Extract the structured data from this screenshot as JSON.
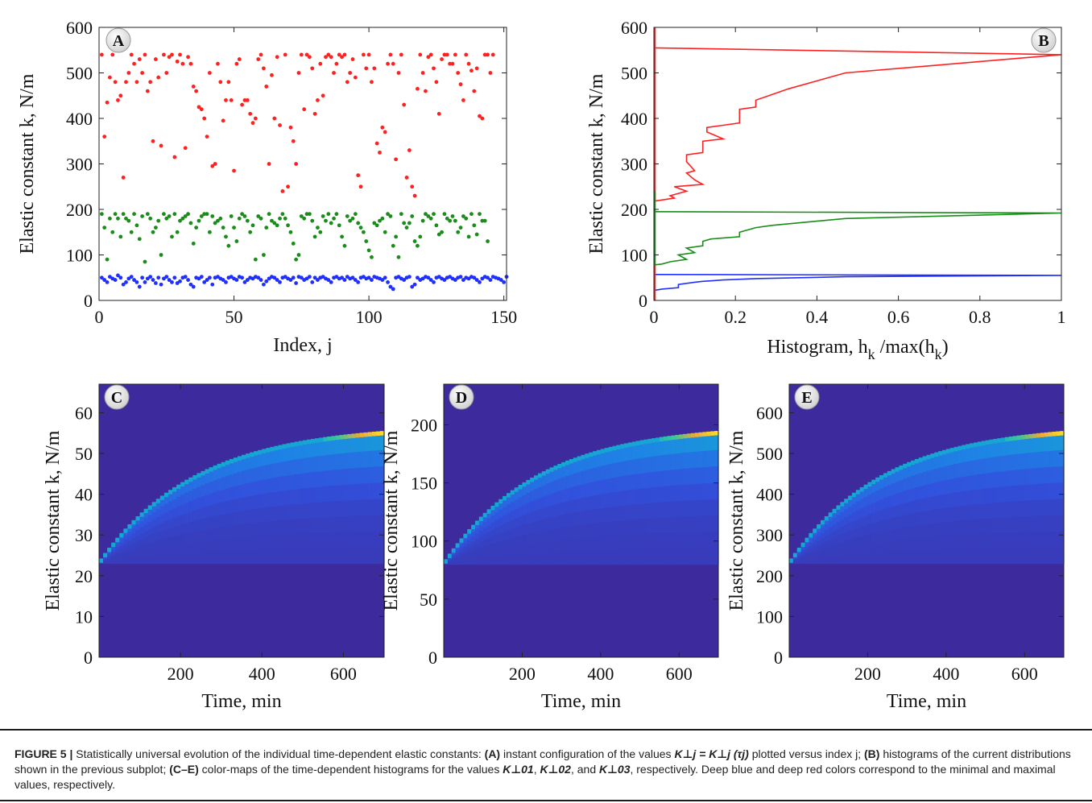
{
  "caption": {
    "fig": "FIGURE 5 |",
    "p1": " Statistically universal evolution of the individual time-dependent elastic constants: ",
    "a": "(A)",
    "p2": " instant configuration of the values ",
    "eq": "K⊥j = K⊥j (τj)",
    "p3": " plotted versus index j; ",
    "b": "(B)",
    "p4": " histograms of the current distributions shown in the previous subplot; ",
    "ce": "(C–E)",
    "p5": " color-maps of the time-dependent histograms for the values ",
    "k1": "K⊥01",
    "sep1": ", ",
    "k2": "K⊥02",
    "sep2": ", and ",
    "k3": "K⊥03",
    "p6": ", respectively. Deep blue and deep red colors correspond to the minimal and maximal values, respectively."
  },
  "colors": {
    "red": "#ff2020",
    "green": "#1a8c1a",
    "blue": "#1f2fff",
    "heat_bg": "#3d2a9c",
    "bright_cell": "#f5a623"
  },
  "chart_data": [
    {
      "panel": "A",
      "type": "scatter",
      "xlabel": "Index, j",
      "ylabel": "Elastic constant k, N/m",
      "xlim": [
        0,
        151
      ],
      "ylim": [
        0,
        600
      ],
      "xticks": [
        0,
        50,
        100,
        150
      ],
      "yticks": [
        0,
        100,
        200,
        300,
        400,
        500,
        600
      ],
      "series": [
        {
          "color": "red",
          "values": [
            540,
            360,
            435,
            490,
            540,
            480,
            440,
            450,
            270,
            480,
            500,
            540,
            520,
            480,
            530,
            500,
            540,
            460,
            480,
            350,
            530,
            490,
            340,
            540,
            500,
            535,
            540,
            315,
            525,
            540,
            520,
            335,
            535,
            520,
            470,
            460,
            425,
            420,
            400,
            360,
            500,
            295,
            300,
            520,
            480,
            395,
            440,
            480,
            440,
            285,
            520,
            530,
            430,
            440,
            440,
            410,
            390,
            400,
            530,
            540,
            510,
            470,
            300,
            495,
            400,
            535,
            385,
            240,
            540,
            250,
            380,
            350,
            300,
            500,
            540,
            420,
            540,
            535,
            510,
            410,
            440,
            520,
            450,
            535,
            540,
            535,
            500,
            520,
            540,
            535,
            540,
            480,
            500,
            530,
            490,
            275,
            250,
            540,
            510,
            540,
            480,
            510,
            345,
            325,
            380,
            370,
            520,
            540,
            520,
            310,
            500,
            540,
            430,
            270,
            330,
            250,
            230,
            465,
            540,
            500,
            460,
            535,
            540,
            510,
            480,
            410,
            530,
            540,
            540,
            520,
            520,
            540,
            500,
            475,
            440,
            540,
            520,
            505,
            460,
            510,
            405,
            400,
            540,
            540,
            500,
            540
          ]
        },
        {
          "color": "green",
          "values": [
            190,
            160,
            90,
            180,
            150,
            190,
            180,
            140,
            190,
            180,
            175,
            150,
            190,
            165,
            135,
            185,
            85,
            190,
            180,
            150,
            160,
            175,
            100,
            190,
            180,
            185,
            140,
            190,
            150,
            175,
            180,
            185,
            190,
            170,
            125,
            160,
            175,
            185,
            190,
            190,
            150,
            185,
            170,
            175,
            180,
            160,
            140,
            120,
            185,
            160,
            130,
            180,
            190,
            185,
            175,
            150,
            165,
            90,
            185,
            180,
            100,
            160,
            190,
            175,
            170,
            165,
            180,
            190,
            180,
            165,
            150,
            125,
            90,
            100,
            185,
            180,
            190,
            190,
            175,
            140,
            160,
            150,
            185,
            175,
            190,
            170,
            180,
            190,
            165,
            140,
            120,
            185,
            175,
            180,
            190,
            170,
            160,
            150,
            130,
            110,
            95,
            170,
            165,
            175,
            180,
            150,
            190,
            185,
            120,
            140,
            95,
            190,
            170,
            160,
            170,
            185,
            130,
            120,
            140,
            175,
            190,
            185,
            180,
            190,
            165,
            145,
            150,
            190,
            180,
            175,
            185,
            175,
            150,
            160,
            185,
            180,
            140,
            190,
            165,
            145,
            190,
            175,
            175,
            130
          ]
        },
        {
          "color": "blue",
          "values": [
            50,
            45,
            40,
            52,
            48,
            45,
            55,
            50,
            35,
            40,
            48,
            52,
            45,
            40,
            30,
            50,
            40,
            48,
            52,
            45,
            38,
            50,
            35,
            48,
            52,
            45,
            40,
            50,
            38,
            42,
            50,
            52,
            45,
            35,
            30,
            50,
            48,
            52,
            40,
            45,
            50,
            35,
            50,
            52,
            48,
            45,
            40,
            50,
            52,
            48,
            45,
            52,
            50,
            40,
            45,
            50,
            48,
            52,
            50,
            45,
            35,
            42,
            48,
            52,
            50,
            45,
            40,
            50,
            52,
            48,
            45,
            50,
            38,
            52,
            50,
            45,
            48,
            52,
            40,
            50,
            45,
            50,
            52,
            48,
            45,
            40,
            50,
            52,
            48,
            50,
            45,
            52,
            48,
            50,
            45,
            40,
            50,
            52,
            48,
            50,
            45,
            52,
            50,
            48,
            45,
            50,
            40,
            30,
            25,
            50,
            52,
            48,
            45,
            50,
            52,
            30,
            35,
            50,
            45,
            48,
            52,
            50,
            45,
            40,
            50,
            52,
            48,
            45,
            50,
            52,
            48,
            45,
            50,
            52,
            45,
            50,
            48,
            52,
            50,
            45,
            40,
            48,
            52,
            50,
            45,
            52,
            50,
            48,
            45,
            40,
            52
          ]
        }
      ],
      "label": "A"
    },
    {
      "panel": "B",
      "type": "line",
      "xlabel": "Histogram, h_k /max(h_k)",
      "ylabel": "Elastic constant k, N/m",
      "xlim": [
        0,
        1
      ],
      "ylim": [
        0,
        600
      ],
      "xticks": [
        "0",
        "0.2",
        "0.4",
        "0.6",
        "0.8",
        "1"
      ],
      "yticks": [
        0,
        100,
        200,
        300,
        400,
        500,
        600
      ],
      "series": [
        {
          "color": "red",
          "points": [
            [
              0,
              555
            ],
            [
              1,
              540
            ],
            [
              0.47,
              500
            ],
            [
              0.33,
              465
            ],
            [
              0.25,
              440
            ],
            [
              0.25,
              425
            ],
            [
              0.21,
              420
            ],
            [
              0.21,
              390
            ],
            [
              0.13,
              380
            ],
            [
              0.13,
              370
            ],
            [
              0.17,
              355
            ],
            [
              0.12,
              350
            ],
            [
              0.12,
              325
            ],
            [
              0.08,
              320
            ],
            [
              0.08,
              305
            ],
            [
              0.1,
              285
            ],
            [
              0.08,
              280
            ],
            [
              0.1,
              265
            ],
            [
              0.12,
              255
            ],
            [
              0.05,
              250
            ],
            [
              0.08,
              240
            ],
            [
              0.04,
              230
            ],
            [
              0.05,
              225
            ],
            [
              0,
              218
            ]
          ]
        },
        {
          "color": "green",
          "points": [
            [
              0,
              195
            ],
            [
              1,
              192
            ],
            [
              0.47,
              180
            ],
            [
              0.29,
              165
            ],
            [
              0.25,
              160
            ],
            [
              0.21,
              150
            ],
            [
              0.21,
              140
            ],
            [
              0.14,
              135
            ],
            [
              0.12,
              130
            ],
            [
              0.12,
              120
            ],
            [
              0.08,
              115
            ],
            [
              0.1,
              105
            ],
            [
              0.06,
              100
            ],
            [
              0.08,
              90
            ],
            [
              0.04,
              85
            ],
            [
              0.02,
              80
            ],
            [
              0,
              78
            ]
          ]
        },
        {
          "color": "blue",
          "points": [
            [
              0,
              57
            ],
            [
              1,
              55
            ],
            [
              0.47,
              52
            ],
            [
              0.25,
              48
            ],
            [
              0.17,
              45
            ],
            [
              0.12,
              42
            ],
            [
              0.1,
              40
            ],
            [
              0.06,
              35
            ],
            [
              0.06,
              28
            ],
            [
              0.02,
              25
            ],
            [
              0,
              22
            ]
          ]
        }
      ],
      "label": "B"
    },
    {
      "panel": "C",
      "type": "heatmap",
      "xlabel": "Time, min",
      "ylabel": "Elastic constant k, N/m",
      "xlim": [
        0,
        700
      ],
      "ylim": [
        0,
        67
      ],
      "xticks": [
        200,
        400,
        600
      ],
      "yticks": [
        0,
        10,
        20,
        30,
        40,
        50,
        60
      ],
      "k0": 23,
      "kmax": 55,
      "label": "C"
    },
    {
      "panel": "D",
      "type": "heatmap",
      "xlabel": "Time, min",
      "ylabel": "Elastic constant k, N/m",
      "xlim": [
        0,
        700
      ],
      "ylim": [
        0,
        235
      ],
      "xticks": [
        200,
        400,
        600
      ],
      "yticks": [
        0,
        50,
        100,
        150,
        200
      ],
      "k0": 80,
      "kmax": 193,
      "label": "D"
    },
    {
      "panel": "E",
      "type": "heatmap",
      "xlabel": "Time, min",
      "ylabel": "Elastic constant k, N/m",
      "xlim": [
        0,
        700
      ],
      "ylim": [
        0,
        670
      ],
      "xticks": [
        200,
        400,
        600
      ],
      "yticks": [
        0,
        100,
        200,
        300,
        400,
        500,
        600
      ],
      "k0": 230,
      "kmax": 550,
      "label": "E"
    }
  ]
}
